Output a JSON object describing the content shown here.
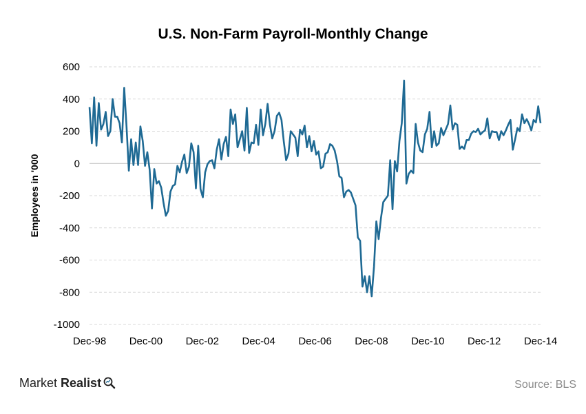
{
  "brand": {
    "name_part1": "Market",
    "name_part2": "Realist",
    "icon": "magnifier-icon"
  },
  "source": "Source: BLS",
  "colors": {
    "line": "#1f6a94",
    "grid": "#d9d9d9",
    "axis": "#bfbfbf"
  },
  "chart_data": {
    "type": "line",
    "title": "U.S. Non-Farm Payroll-Monthly Change",
    "xlabel": "",
    "ylabel": "Employees in '000",
    "ylim": [
      -1000,
      600
    ],
    "yticks": [
      600,
      400,
      200,
      0,
      -200,
      -400,
      -600,
      -800,
      -1000
    ],
    "yticks_labels": [
      "600",
      "400",
      "200",
      "0",
      "-200",
      "-400",
      "-600",
      "-800",
      "-1000"
    ],
    "xticks_labels": [
      "Dec-98",
      "Dec-00",
      "Dec-02",
      "Dec-04",
      "Dec-06",
      "Dec-08",
      "Dec-10",
      "Dec-12",
      "Dec-14"
    ],
    "grid": "horizontal dashed",
    "x_start": "Dec-98",
    "x_end": "Dec-14",
    "series": [
      {
        "values": [
          350,
          125,
          410,
          110,
          375,
          210,
          245,
          320,
          170,
          200,
          400,
          290,
          290,
          250,
          130,
          470,
          230,
          -45,
          150,
          -10,
          130,
          -10,
          230,
          140,
          -15,
          70,
          -40,
          -280,
          -35,
          -125,
          -110,
          -150,
          -245,
          -325,
          -295,
          -175,
          -140,
          -130,
          -15,
          -55,
          10,
          55,
          -60,
          -20,
          125,
          70,
          -155,
          110,
          -160,
          -210,
          -55,
          -5,
          15,
          20,
          -30,
          85,
          150,
          25,
          120,
          165,
          45,
          335,
          245,
          305,
          100,
          150,
          200,
          80,
          345,
          65,
          130,
          125,
          240,
          115,
          335,
          175,
          245,
          370,
          240,
          155,
          200,
          295,
          315,
          270,
          135,
          20,
          60,
          200,
          180,
          160,
          45,
          210,
          180,
          235,
          100,
          170,
          75,
          140,
          55,
          75,
          -30,
          -20,
          60,
          70,
          120,
          110,
          80,
          15,
          -80,
          -90,
          -210,
          -175,
          -165,
          -180,
          -220,
          -260,
          -460,
          -480,
          -765,
          -700,
          -800,
          -700,
          -825,
          -640,
          -360,
          -470,
          -340,
          -240,
          -220,
          -200,
          20,
          -285,
          15,
          -50,
          140,
          250,
          515,
          -125,
          -65,
          -45,
          -60,
          245,
          130,
          80,
          70,
          180,
          215,
          320,
          100,
          200,
          110,
          125,
          220,
          175,
          210,
          245,
          360,
          210,
          250,
          240,
          90,
          105,
          90,
          145,
          145,
          185,
          200,
          195,
          215,
          180,
          195,
          205,
          280,
          155,
          200,
          195,
          195,
          145,
          200,
          175,
          205,
          240,
          270,
          85,
          150,
          220,
          200,
          305,
          250,
          275,
          245,
          205,
          270,
          255,
          355,
          250
        ]
      }
    ]
  }
}
